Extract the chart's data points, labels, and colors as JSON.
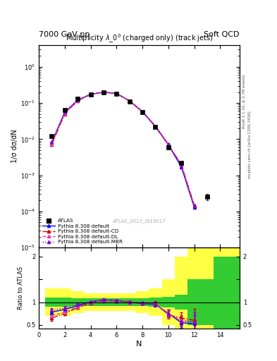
{
  "title_left": "7000 GeV pp",
  "title_right": "Soft QCD",
  "plot_title": "Multiplicity $\\lambda\\_0^0$ (charged only) (track jets)",
  "xlabel": "N",
  "ylabel_main": "1/σ dσ/dN",
  "ylabel_ratio": "Ratio to ATLAS",
  "right_label_top": "Rivet 3.1.10, ≥ 2.7M events",
  "right_label_bot": "mcplots.cern.ch [arXiv:1306.3436]",
  "watermark": "ATLAS_2011_I919017",
  "atlas_x": [
    1,
    2,
    3,
    4,
    5,
    6,
    7,
    8,
    9,
    10,
    11,
    13
  ],
  "atlas_y": [
    0.012,
    0.065,
    0.13,
    0.175,
    0.195,
    0.18,
    0.11,
    0.055,
    0.022,
    0.006,
    0.0022,
    0.00025
  ],
  "atlas_yerr": [
    0.001,
    0.003,
    0.005,
    0.006,
    0.007,
    0.006,
    0.004,
    0.002,
    0.001,
    0.0004,
    0.0002,
    5e-05
  ],
  "pythia_default_x": [
    1,
    2,
    3,
    4,
    5,
    6,
    7,
    8,
    9,
    10,
    11,
    12
  ],
  "pythia_default_y": [
    0.008,
    0.055,
    0.12,
    0.175,
    0.2,
    0.185,
    0.115,
    0.058,
    0.022,
    0.007,
    0.0017,
    0.00013
  ],
  "pythia_cd_x": [
    1,
    2,
    3,
    4,
    5,
    6,
    7,
    8,
    9,
    10,
    11,
    12
  ],
  "pythia_cd_y": [
    0.007,
    0.05,
    0.115,
    0.172,
    0.198,
    0.183,
    0.113,
    0.057,
    0.023,
    0.007,
    0.002,
    0.00015
  ],
  "pythia_dl_x": [
    1,
    2,
    3,
    4,
    5,
    6,
    7,
    8,
    9,
    10,
    11,
    12
  ],
  "pythia_dl_y": [
    0.0075,
    0.052,
    0.117,
    0.173,
    0.199,
    0.184,
    0.114,
    0.058,
    0.023,
    0.0072,
    0.0019,
    0.00014
  ],
  "pythia_mbr_x": [
    1,
    2,
    3,
    4,
    5,
    6,
    7,
    8,
    9,
    10,
    11,
    12
  ],
  "pythia_mbr_y": [
    0.0085,
    0.057,
    0.122,
    0.176,
    0.201,
    0.186,
    0.116,
    0.059,
    0.023,
    0.0073,
    0.0018,
    0.00014
  ],
  "band_x_edges": [
    0.5,
    1.5,
    2.5,
    3.5,
    4.5,
    5.5,
    6.5,
    7.5,
    8.5,
    9.5,
    10.5,
    11.5,
    13.5,
    15.5
  ],
  "band_green": [
    0.1,
    0.1,
    0.08,
    0.08,
    0.08,
    0.08,
    0.08,
    0.08,
    0.1,
    0.12,
    0.16,
    0.5,
    1.0,
    1.0
  ],
  "band_yellow": [
    0.3,
    0.3,
    0.24,
    0.2,
    0.2,
    0.2,
    0.2,
    0.24,
    0.3,
    0.5,
    1.0,
    1.6,
    1.8,
    1.8
  ],
  "ratio_default_x": [
    1,
    2,
    3,
    4,
    5,
    6,
    7,
    8,
    9,
    10,
    11,
    12
  ],
  "ratio_default_y": [
    0.78,
    0.84,
    0.92,
    1.0,
    1.05,
    1.03,
    1.0,
    0.97,
    0.95,
    0.75,
    0.55,
    0.52
  ],
  "ratio_default_yerr": [
    0.05,
    0.04,
    0.03,
    0.02,
    0.02,
    0.02,
    0.02,
    0.03,
    0.05,
    0.08,
    0.12,
    0.2
  ],
  "ratio_cd_x": [
    1,
    2,
    3,
    4,
    5,
    6,
    7,
    8,
    9,
    10,
    11,
    12
  ],
  "ratio_cd_y": [
    0.65,
    0.75,
    0.88,
    0.98,
    1.03,
    1.02,
    1.0,
    0.98,
    0.97,
    0.72,
    0.65,
    0.6
  ],
  "ratio_cd_yerr": [
    0.06,
    0.04,
    0.03,
    0.02,
    0.02,
    0.02,
    0.02,
    0.03,
    0.05,
    0.09,
    0.13,
    0.25
  ],
  "ratio_dl_x": [
    1,
    2,
    3,
    4,
    5,
    6,
    7,
    8,
    9,
    10,
    11,
    12
  ],
  "ratio_dl_y": [
    0.7,
    0.78,
    0.9,
    0.99,
    1.04,
    1.02,
    1.0,
    0.98,
    0.96,
    0.73,
    0.6,
    0.56
  ],
  "ratio_dl_yerr": [
    0.06,
    0.04,
    0.03,
    0.02,
    0.02,
    0.02,
    0.02,
    0.03,
    0.05,
    0.09,
    0.12,
    0.22
  ],
  "ratio_mbr_x": [
    1,
    2,
    3,
    4,
    5,
    6,
    7,
    8,
    9,
    10,
    11,
    12
  ],
  "ratio_mbr_y": [
    0.82,
    0.87,
    0.94,
    1.01,
    1.06,
    1.04,
    1.01,
    0.98,
    0.96,
    0.75,
    0.58,
    0.56
  ],
  "ratio_mbr_yerr": [
    0.05,
    0.04,
    0.03,
    0.02,
    0.02,
    0.02,
    0.02,
    0.03,
    0.05,
    0.08,
    0.12,
    0.22
  ],
  "color_default": "#0000ff",
  "color_cd": "#cc0000",
  "color_dl": "#dd44aa",
  "color_mbr": "#8800cc",
  "color_atlas": "#000000",
  "color_green": "#33cc33",
  "color_yellow": "#ffff44",
  "bg_color": "#ffffff",
  "ylim_main": [
    1e-05,
    4.0
  ],
  "ylim_ratio": [
    0.42,
    2.2
  ],
  "xlim": [
    0.5,
    15.5
  ]
}
